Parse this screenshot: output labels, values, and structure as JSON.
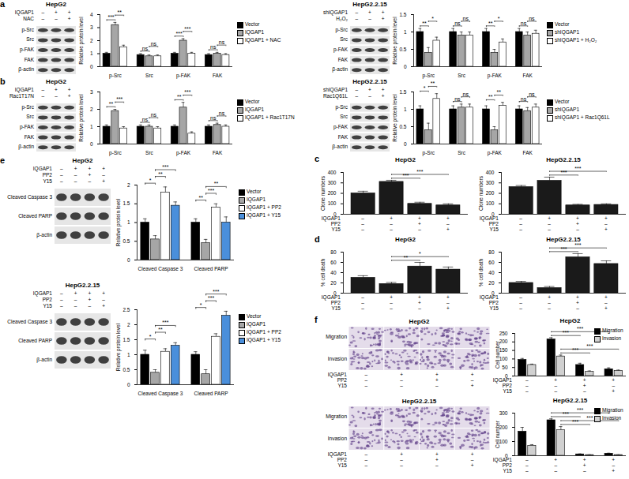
{
  "panel_labels": [
    "a",
    "b",
    "c",
    "d",
    "e",
    "f"
  ],
  "blots": [
    {
      "title": "HepG2",
      "conditions": [
        {
          "name": "IQGAP1",
          "signs": [
            "–",
            "+",
            "+"
          ]
        },
        {
          "name": "NAC",
          "signs": [
            "–",
            "–",
            "+"
          ]
        }
      ],
      "bands": [
        "p-Src",
        "Src",
        "p-FAK",
        "FAK",
        "β-actin"
      ]
    },
    {
      "title": "HepG2.2.15",
      "conditions": [
        {
          "name": "shIQGAP1",
          "signs": [
            "–",
            "+",
            "+"
          ]
        },
        {
          "name": "H₂O₂",
          "signs": [
            "–",
            "–",
            "+"
          ]
        }
      ],
      "bands": [
        "p-Src",
        "Src",
        "p-FAK",
        "FAK",
        "β-actin"
      ]
    },
    {
      "title": "HepG2",
      "conditions": [
        {
          "name": "IQGAP1",
          "signs": [
            "–",
            "+",
            "+"
          ]
        },
        {
          "name": "Rac1T17N",
          "signs": [
            "–",
            "–",
            "+"
          ]
        }
      ],
      "bands": [
        "p-Src",
        "Src",
        "p-FAK",
        "FAK",
        "β-actin"
      ]
    },
    {
      "title": "HepG2.2.15",
      "conditions": [
        {
          "name": "shIQGAP1",
          "signs": [
            "–",
            "+",
            "+"
          ]
        },
        {
          "name": "Rac1Q61L",
          "signs": [
            "–",
            "–",
            "+"
          ]
        }
      ],
      "bands": [
        "p-Src",
        "Src",
        "p-FAK",
        "FAK",
        "β-actin"
      ]
    },
    {
      "title": "HepG2",
      "conditions": [
        {
          "name": "IQGAP1",
          "signs": [
            "–",
            "+",
            "+",
            "+"
          ]
        },
        {
          "name": "PP2",
          "signs": [
            "–",
            "–",
            "+",
            "–"
          ]
        },
        {
          "name": "Y15",
          "signs": [
            "–",
            "–",
            "–",
            "+"
          ]
        }
      ],
      "bands": [
        "Cleaved Caspase 3",
        "Cleaved PARP",
        "β-actin"
      ]
    },
    {
      "title": "HepG2.2.15",
      "conditions": [
        {
          "name": "IQGAP1",
          "signs": [
            "–",
            "+",
            "+",
            "+"
          ]
        },
        {
          "name": "PP2",
          "signs": [
            "–",
            "–",
            "+",
            "–"
          ]
        },
        {
          "name": "Y15",
          "signs": [
            "–",
            "–",
            "–",
            "+"
          ]
        }
      ],
      "bands": [
        "Cleaved Caspase 3",
        "Cleaved PARP",
        "β-actin"
      ]
    }
  ],
  "micrographs": [
    {
      "title": "HepG2",
      "rows": [
        "Migration",
        "Invasion"
      ],
      "conditions": [
        {
          "name": "IQGAP1",
          "signs": [
            "–",
            "+",
            "+",
            "+"
          ]
        },
        {
          "name": "PP2",
          "signs": [
            "–",
            "–",
            "+",
            "–"
          ]
        },
        {
          "name": "Y15",
          "signs": [
            "–",
            "–",
            "–",
            "+"
          ]
        }
      ]
    },
    {
      "title": "HepG2.2.15",
      "rows": [
        "Migration",
        "Invasion"
      ],
      "conditions": [
        {
          "name": "IQGAP1",
          "signs": [
            "–",
            "+",
            "+",
            "+"
          ]
        },
        {
          "name": "PP2",
          "signs": [
            "–",
            "–",
            "+",
            "–"
          ]
        },
        {
          "name": "Y15",
          "signs": [
            "–",
            "–",
            "–",
            "+"
          ]
        }
      ]
    }
  ],
  "chart_data": [
    {
      "type": "bar",
      "y_label": "Relative protein level",
      "categories": [
        "p-Src",
        "Src",
        "p-FAK",
        "FAK"
      ],
      "series": [
        {
          "name": "Vector",
          "color": "#000000",
          "values": [
            1.0,
            0.9,
            1.0,
            0.9
          ],
          "errors": [
            0.1,
            0.1,
            0.1,
            0.1
          ]
        },
        {
          "name": "IQGAP1",
          "color": "#a6a6a6",
          "values": [
            3.2,
            0.8,
            2.0,
            1.0
          ],
          "errors": [
            0.2,
            0.1,
            0.15,
            0.1
          ]
        },
        {
          "name": "IQGAP1 + NAC",
          "color": "#ffffff",
          "values": [
            1.5,
            0.8,
            1.0,
            0.9
          ],
          "errors": [
            0.15,
            0.1,
            0.1,
            0.1
          ]
        }
      ],
      "ylim": [
        0,
        4
      ],
      "yticks": [
        0,
        1,
        2,
        3,
        4
      ],
      "annotations": [
        [
          "***",
          "**"
        ],
        [
          "ns",
          "ns"
        ],
        [
          "***",
          "***"
        ],
        [
          "ns",
          "ns"
        ]
      ],
      "legend": "right"
    },
    {
      "type": "bar",
      "y_label": "Relative protein level",
      "categories": [
        "p-Src",
        "Src",
        "p-FAK",
        "FAK"
      ],
      "series": [
        {
          "name": "Vector",
          "color": "#000000",
          "values": [
            1.0,
            1.0,
            1.0,
            1.0
          ],
          "errors": [
            0.1,
            0.1,
            0.1,
            0.1
          ]
        },
        {
          "name": "shIQGAP1",
          "color": "#a6a6a6",
          "values": [
            0.4,
            0.9,
            0.4,
            0.9
          ],
          "errors": [
            0.15,
            0.1,
            0.1,
            0.1
          ]
        },
        {
          "name": "shIQGAP1 + H₂O₂",
          "color": "#ffffff",
          "values": [
            0.75,
            0.9,
            0.7,
            0.95
          ],
          "errors": [
            0.1,
            0.1,
            0.1,
            0.1
          ]
        }
      ],
      "ylim": [
        0,
        1.5
      ],
      "yticks": [
        0,
        0.5,
        1,
        1.5
      ],
      "annotations": [
        [
          "**",
          "*"
        ],
        [
          "ns",
          "ns"
        ],
        [
          "**",
          "*"
        ],
        [
          "ns",
          "ns"
        ]
      ],
      "legend": "right"
    },
    {
      "type": "bar",
      "y_label": "Relative protein level",
      "categories": [
        "p-Src",
        "Src",
        "p-FAK",
        "FAK"
      ],
      "series": [
        {
          "name": "Vector",
          "color": "#000000",
          "values": [
            1.0,
            1.0,
            1.0,
            1.0
          ],
          "errors": [
            0.1,
            0.1,
            0.1,
            0.1
          ]
        },
        {
          "name": "IQGAP1",
          "color": "#a6a6a6",
          "values": [
            1.9,
            1.0,
            2.1,
            1.1
          ],
          "errors": [
            0.1,
            0.1,
            0.3,
            0.1
          ]
        },
        {
          "name": "IQGAP1 + Rac1T17N",
          "color": "#ffffff",
          "values": [
            0.9,
            0.9,
            0.6,
            1.0
          ],
          "errors": [
            0.1,
            0.1,
            0.1,
            0.1
          ]
        }
      ],
      "ylim": [
        0,
        3
      ],
      "yticks": [
        0,
        1,
        2,
        3
      ],
      "annotations": [
        [
          "**",
          "***"
        ],
        [
          "ns",
          "ns"
        ],
        [
          "**",
          "***"
        ],
        [
          "ns",
          "ns"
        ]
      ],
      "legend": "right"
    },
    {
      "type": "bar",
      "y_label": "Relative protein level",
      "categories": [
        "p-Src",
        "Src",
        "p-FAK",
        "FAK"
      ],
      "series": [
        {
          "name": "Vector",
          "color": "#000000",
          "values": [
            1.0,
            1.0,
            1.0,
            1.0
          ],
          "errors": [
            0.1,
            0.1,
            0.1,
            0.1
          ]
        },
        {
          "name": "shIQGAP1",
          "color": "#a6a6a6",
          "values": [
            0.4,
            1.05,
            0.4,
            0.95
          ],
          "errors": [
            0.2,
            0.1,
            0.1,
            0.1
          ]
        },
        {
          "name": "shIQGAP1 + Rac1Q61L",
          "color": "#ffffff",
          "values": [
            1.3,
            1.05,
            1.1,
            1.05
          ],
          "errors": [
            0.15,
            0.1,
            0.1,
            0.1
          ]
        }
      ],
      "ylim": [
        0,
        1.5
      ],
      "yticks": [
        0,
        0.5,
        1,
        1.5
      ],
      "annotations": [
        [
          "*",
          "**"
        ],
        [
          "ns",
          "ns"
        ],
        [
          "**",
          "**"
        ],
        [
          "ns",
          "ns"
        ]
      ],
      "legend": "right"
    },
    {
      "type": "bar",
      "title": "HepG2",
      "y_label": "Clone numbers",
      "conditions": [
        {
          "name": "IQGAP1",
          "signs": [
            "–",
            "+",
            "+",
            "+"
          ]
        },
        {
          "name": "PP2",
          "signs": [
            "–",
            "–",
            "+",
            "–"
          ]
        },
        {
          "name": "Y15",
          "signs": [
            "–",
            "–",
            "–",
            "+"
          ]
        }
      ],
      "values": [
        200,
        310,
        100,
        85
      ],
      "errors": [
        20,
        15,
        15,
        15
      ],
      "color": "#1a1a1a",
      "ylim": [
        0,
        400
      ],
      "yticks": [
        0,
        100,
        200,
        300,
        400
      ],
      "annotations": [
        "***",
        "***"
      ]
    },
    {
      "type": "bar",
      "title": "HepG2.2.15",
      "y_label": "Clone numbers",
      "conditions": [
        {
          "name": "IQGAP1",
          "signs": [
            "–",
            "+",
            "+",
            "+"
          ]
        },
        {
          "name": "PP2",
          "signs": [
            "–",
            "–",
            "+",
            "–"
          ]
        },
        {
          "name": "Y15",
          "signs": [
            "–",
            "–",
            "–",
            "+"
          ]
        }
      ],
      "values": [
        260,
        320,
        85,
        90
      ],
      "errors": [
        15,
        35,
        10,
        10
      ],
      "color": "#1a1a1a",
      "ylim": [
        0,
        400
      ],
      "yticks": [
        0,
        100,
        200,
        300,
        400
      ],
      "annotations": [
        "***",
        "***"
      ]
    },
    {
      "type": "bar",
      "title": "HepG2",
      "y_label": "% cell death",
      "conditions": [
        {
          "name": "IQGAP1",
          "signs": [
            "–",
            "+",
            "+",
            "+"
          ]
        },
        {
          "name": "PP2",
          "signs": [
            "–",
            "–",
            "+",
            "–"
          ]
        },
        {
          "name": "Y15",
          "signs": [
            "–",
            "–",
            "–",
            "+"
          ]
        }
      ],
      "values": [
        30,
        18,
        52,
        46
      ],
      "errors": [
        4,
        3,
        8,
        5
      ],
      "color": "#1a1a1a",
      "ylim": [
        0,
        80
      ],
      "yticks": [
        0,
        20,
        40,
        60,
        80
      ],
      "annotations": [
        "**",
        "*"
      ]
    },
    {
      "type": "bar",
      "title": "HepG2.2.15",
      "y_label": "% cell death",
      "conditions": [
        {
          "name": "IQGAP1",
          "signs": [
            "–",
            "+",
            "+",
            "+"
          ]
        },
        {
          "name": "PP2",
          "signs": [
            "–",
            "–",
            "+",
            "–"
          ]
        },
        {
          "name": "Y15",
          "signs": [
            "–",
            "–",
            "–",
            "+"
          ]
        }
      ],
      "values": [
        20,
        10,
        70,
        57
      ],
      "errors": [
        3,
        3,
        7,
        6
      ],
      "color": "#1a1a1a",
      "ylim": [
        0,
        80
      ],
      "yticks": [
        0,
        20,
        40,
        60,
        80
      ],
      "annotations": [
        "***",
        "***"
      ]
    },
    {
      "type": "bar",
      "y_label": "Relative protein level",
      "categories": [
        "Cleaved Caspase 3",
        "Cleaved PARP"
      ],
      "series": [
        {
          "name": "Vector",
          "color": "#000000",
          "values": [
            1.0,
            1.0
          ],
          "errors": [
            0.1,
            0.1
          ]
        },
        {
          "name": "IQGAP1",
          "color": "#a6a6a6",
          "values": [
            0.55,
            0.45
          ],
          "errors": [
            0.1,
            0.1
          ]
        },
        {
          "name": "IQGAP1 + PP2",
          "color": "#ffffff",
          "values": [
            1.8,
            1.4
          ],
          "errors": [
            0.15,
            0.1
          ]
        },
        {
          "name": "IQGAP1 + Y15",
          "color": "#4a8fdb",
          "values": [
            1.45,
            1.0
          ],
          "errors": [
            0.1,
            0.15
          ]
        }
      ],
      "ylim": [
        0,
        2
      ],
      "yticks": [
        0,
        0.5,
        1,
        1.5,
        2
      ],
      "annotations": [
        [
          "*",
          "**",
          "***"
        ],
        [
          "**",
          "***",
          "**"
        ]
      ],
      "legend": "right"
    },
    {
      "type": "bar",
      "y_label": "Relative protein level",
      "categories": [
        "Cleaved Caspase 3",
        "Cleaved PARP"
      ],
      "series": [
        {
          "name": "Vector",
          "color": "#000000",
          "values": [
            1.0,
            1.0
          ],
          "errors": [
            0.15,
            0.1
          ]
        },
        {
          "name": "IQGAP1",
          "color": "#a6a6a6",
          "values": [
            0.4,
            0.35
          ],
          "errors": [
            0.1,
            0.15
          ]
        },
        {
          "name": "IQGAP1 + PP2",
          "color": "#ffffff",
          "values": [
            1.1,
            1.6
          ],
          "errors": [
            0.1,
            0.1
          ]
        },
        {
          "name": "IQGAP1 + Y15",
          "color": "#4a8fdb",
          "values": [
            1.3,
            2.3
          ],
          "errors": [
            0.1,
            0.15
          ]
        }
      ],
      "ylim": [
        0,
        2.5
      ],
      "yticks": [
        0,
        0.5,
        1,
        1.5,
        2,
        2.5
      ],
      "annotations": [
        [
          "*",
          "**",
          "***"
        ],
        [
          "*",
          "***",
          "***"
        ]
      ],
      "legend": "right"
    },
    {
      "type": "bar",
      "title": "HepG2",
      "y_label": "Cell number",
      "conditions": [
        {
          "name": "IQGAP1",
          "signs": [
            "–",
            "+",
            "+",
            "+"
          ]
        },
        {
          "name": "PP2",
          "signs": [
            "–",
            "–",
            "+",
            "–"
          ]
        },
        {
          "name": "Y15",
          "signs": [
            "–",
            "–",
            "–",
            "+"
          ]
        }
      ],
      "series": [
        {
          "name": "Migration",
          "color": "#000000",
          "values": [
            95,
            215,
            65,
            40
          ],
          "errors": [
            8,
            10,
            10,
            8
          ]
        },
        {
          "name": "Invasion",
          "color": "#d0d0d0",
          "values": [
            65,
            115,
            25,
            30
          ],
          "errors": [
            5,
            8,
            5,
            5
          ]
        }
      ],
      "ylim": [
        0,
        250
      ],
      "yticks": [
        0,
        50,
        100,
        150,
        200,
        250
      ],
      "annotations": [
        [
          "***",
          "***"
        ],
        [
          "***",
          "***"
        ]
      ],
      "legend": "upper right"
    },
    {
      "type": "bar",
      "title": "HepG2.2.15",
      "y_label": "Cell number",
      "conditions": [
        {
          "name": "IQGAP1",
          "signs": [
            "–",
            "+",
            "+",
            "+"
          ]
        },
        {
          "name": "PP2",
          "signs": [
            "–",
            "–",
            "+",
            "–"
          ]
        },
        {
          "name": "Y15",
          "signs": [
            "–",
            "–",
            "–",
            "+"
          ]
        }
      ],
      "series": [
        {
          "name": "Migration",
          "color": "#000000",
          "values": [
            170,
            250,
            10,
            15
          ],
          "errors": [
            30,
            10,
            3,
            3
          ],
          "errors_note": null
        },
        {
          "name": "Invasion",
          "color": "#d0d0d0",
          "values": [
            70,
            180,
            5,
            5
          ],
          "errors": [
            8,
            25,
            2,
            2
          ]
        }
      ],
      "ylim": [
        0,
        300
      ],
      "yticks": [
        0,
        100,
        200,
        300
      ],
      "annotations": [
        [
          "***",
          "***"
        ],
        [
          "***",
          "***"
        ]
      ],
      "legend": "upper right"
    }
  ]
}
